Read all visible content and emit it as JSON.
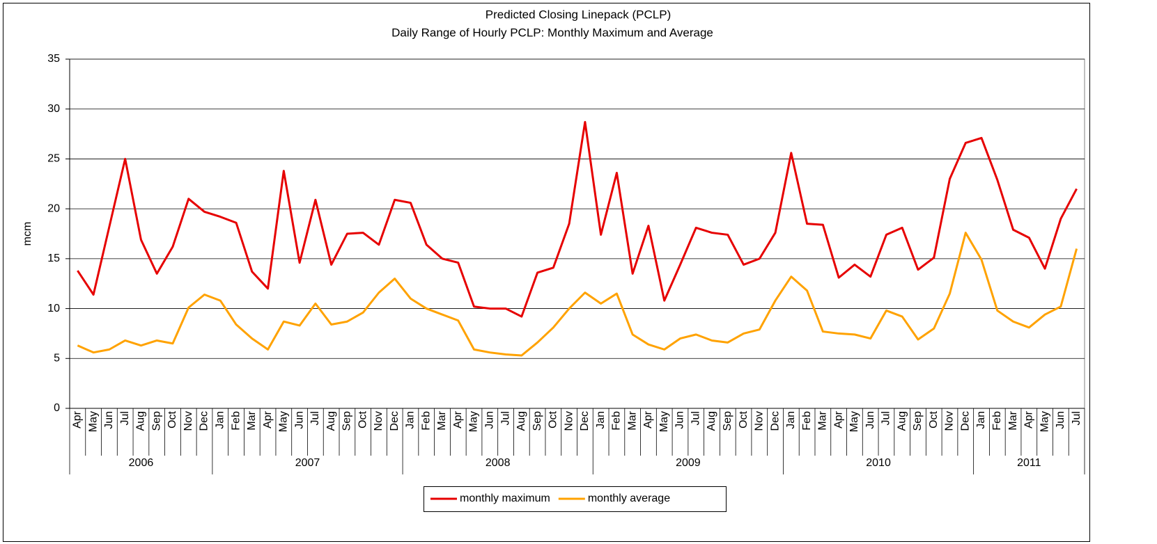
{
  "chart_data": {
    "type": "line",
    "title": "Predicted Closing Linepack (PCLP)",
    "subtitle": "Daily Range of Hourly PCLP: Monthly Maximum and Average",
    "y_label": "mcm",
    "category_groups": [
      {
        "label": "2006",
        "categories": [
          "Apr",
          "May",
          "Jun",
          "Jul",
          "Aug",
          "Sep",
          "Oct",
          "Nov",
          "Dec"
        ]
      },
      {
        "label": "2007",
        "categories": [
          "Jan",
          "Feb",
          "Mar",
          "Apr",
          "May",
          "Jun",
          "Jul",
          "Aug",
          "Sep",
          "Oct",
          "Nov",
          "Dec"
        ]
      },
      {
        "label": "2008",
        "categories": [
          "Jan",
          "Feb",
          "Mar",
          "Apr",
          "May",
          "Jun",
          "Jul",
          "Aug",
          "Sep",
          "Oct",
          "Nov",
          "Dec"
        ]
      },
      {
        "label": "2009",
        "categories": [
          "Jan",
          "Feb",
          "Mar",
          "Apr",
          "May",
          "Jun",
          "Jul",
          "Aug",
          "Sep",
          "Oct",
          "Nov",
          "Dec"
        ]
      },
      {
        "label": "2010",
        "categories": [
          "Jan",
          "Feb",
          "Mar",
          "Apr",
          "May",
          "Jun",
          "Jul",
          "Aug",
          "Sep",
          "Oct",
          "Nov",
          "Dec"
        ]
      },
      {
        "label": "2011",
        "categories": [
          "Jan",
          "Feb",
          "Mar",
          "Apr",
          "May",
          "Jun",
          "Jul"
        ]
      }
    ],
    "series": [
      {
        "name": "monthly maximum",
        "color": "#e60000",
        "values": [
          13.8,
          11.4,
          18.2,
          25.0,
          16.9,
          13.5,
          16.2,
          21.0,
          19.7,
          19.2,
          18.6,
          13.7,
          12.0,
          23.8,
          14.6,
          20.9,
          14.4,
          17.5,
          17.6,
          16.4,
          20.9,
          20.6,
          16.4,
          15.0,
          14.6,
          10.2,
          10.0,
          10.0,
          9.2,
          13.6,
          14.1,
          18.5,
          28.7,
          17.4,
          23.6,
          13.5,
          18.3,
          10.8,
          14.4,
          18.1,
          17.6,
          17.4,
          14.4,
          15.0,
          17.6,
          25.6,
          18.5,
          18.4,
          13.1,
          14.4,
          13.2,
          17.4,
          18.1,
          13.9,
          15.1,
          23.0,
          26.6,
          27.1,
          22.9,
          17.9,
          17.1,
          14.0,
          19.0,
          22.0
        ]
      },
      {
        "name": "monthly average",
        "color": "#ffa200",
        "values": [
          6.3,
          5.6,
          5.9,
          6.8,
          6.3,
          6.8,
          6.5,
          10.1,
          11.4,
          10.8,
          8.4,
          7.0,
          5.9,
          8.7,
          8.3,
          10.5,
          8.4,
          8.7,
          9.6,
          11.6,
          13.0,
          11.0,
          10.0,
          9.4,
          8.8,
          5.9,
          5.6,
          5.4,
          5.3,
          6.6,
          8.1,
          10.0,
          11.6,
          10.5,
          11.5,
          7.4,
          6.4,
          5.9,
          7.0,
          7.4,
          6.8,
          6.6,
          7.5,
          7.9,
          10.8,
          13.2,
          11.8,
          7.7,
          7.5,
          7.4,
          7.0,
          9.8,
          9.2,
          6.9,
          8.0,
          11.5,
          17.6,
          14.9,
          9.8,
          8.7,
          8.1,
          9.4,
          10.2,
          16.0
        ]
      }
    ],
    "ylim": [
      0,
      35
    ],
    "yticks": [
      0,
      5,
      10,
      15,
      20,
      25,
      30,
      35
    ],
    "grid": true,
    "legend": "bottom"
  }
}
